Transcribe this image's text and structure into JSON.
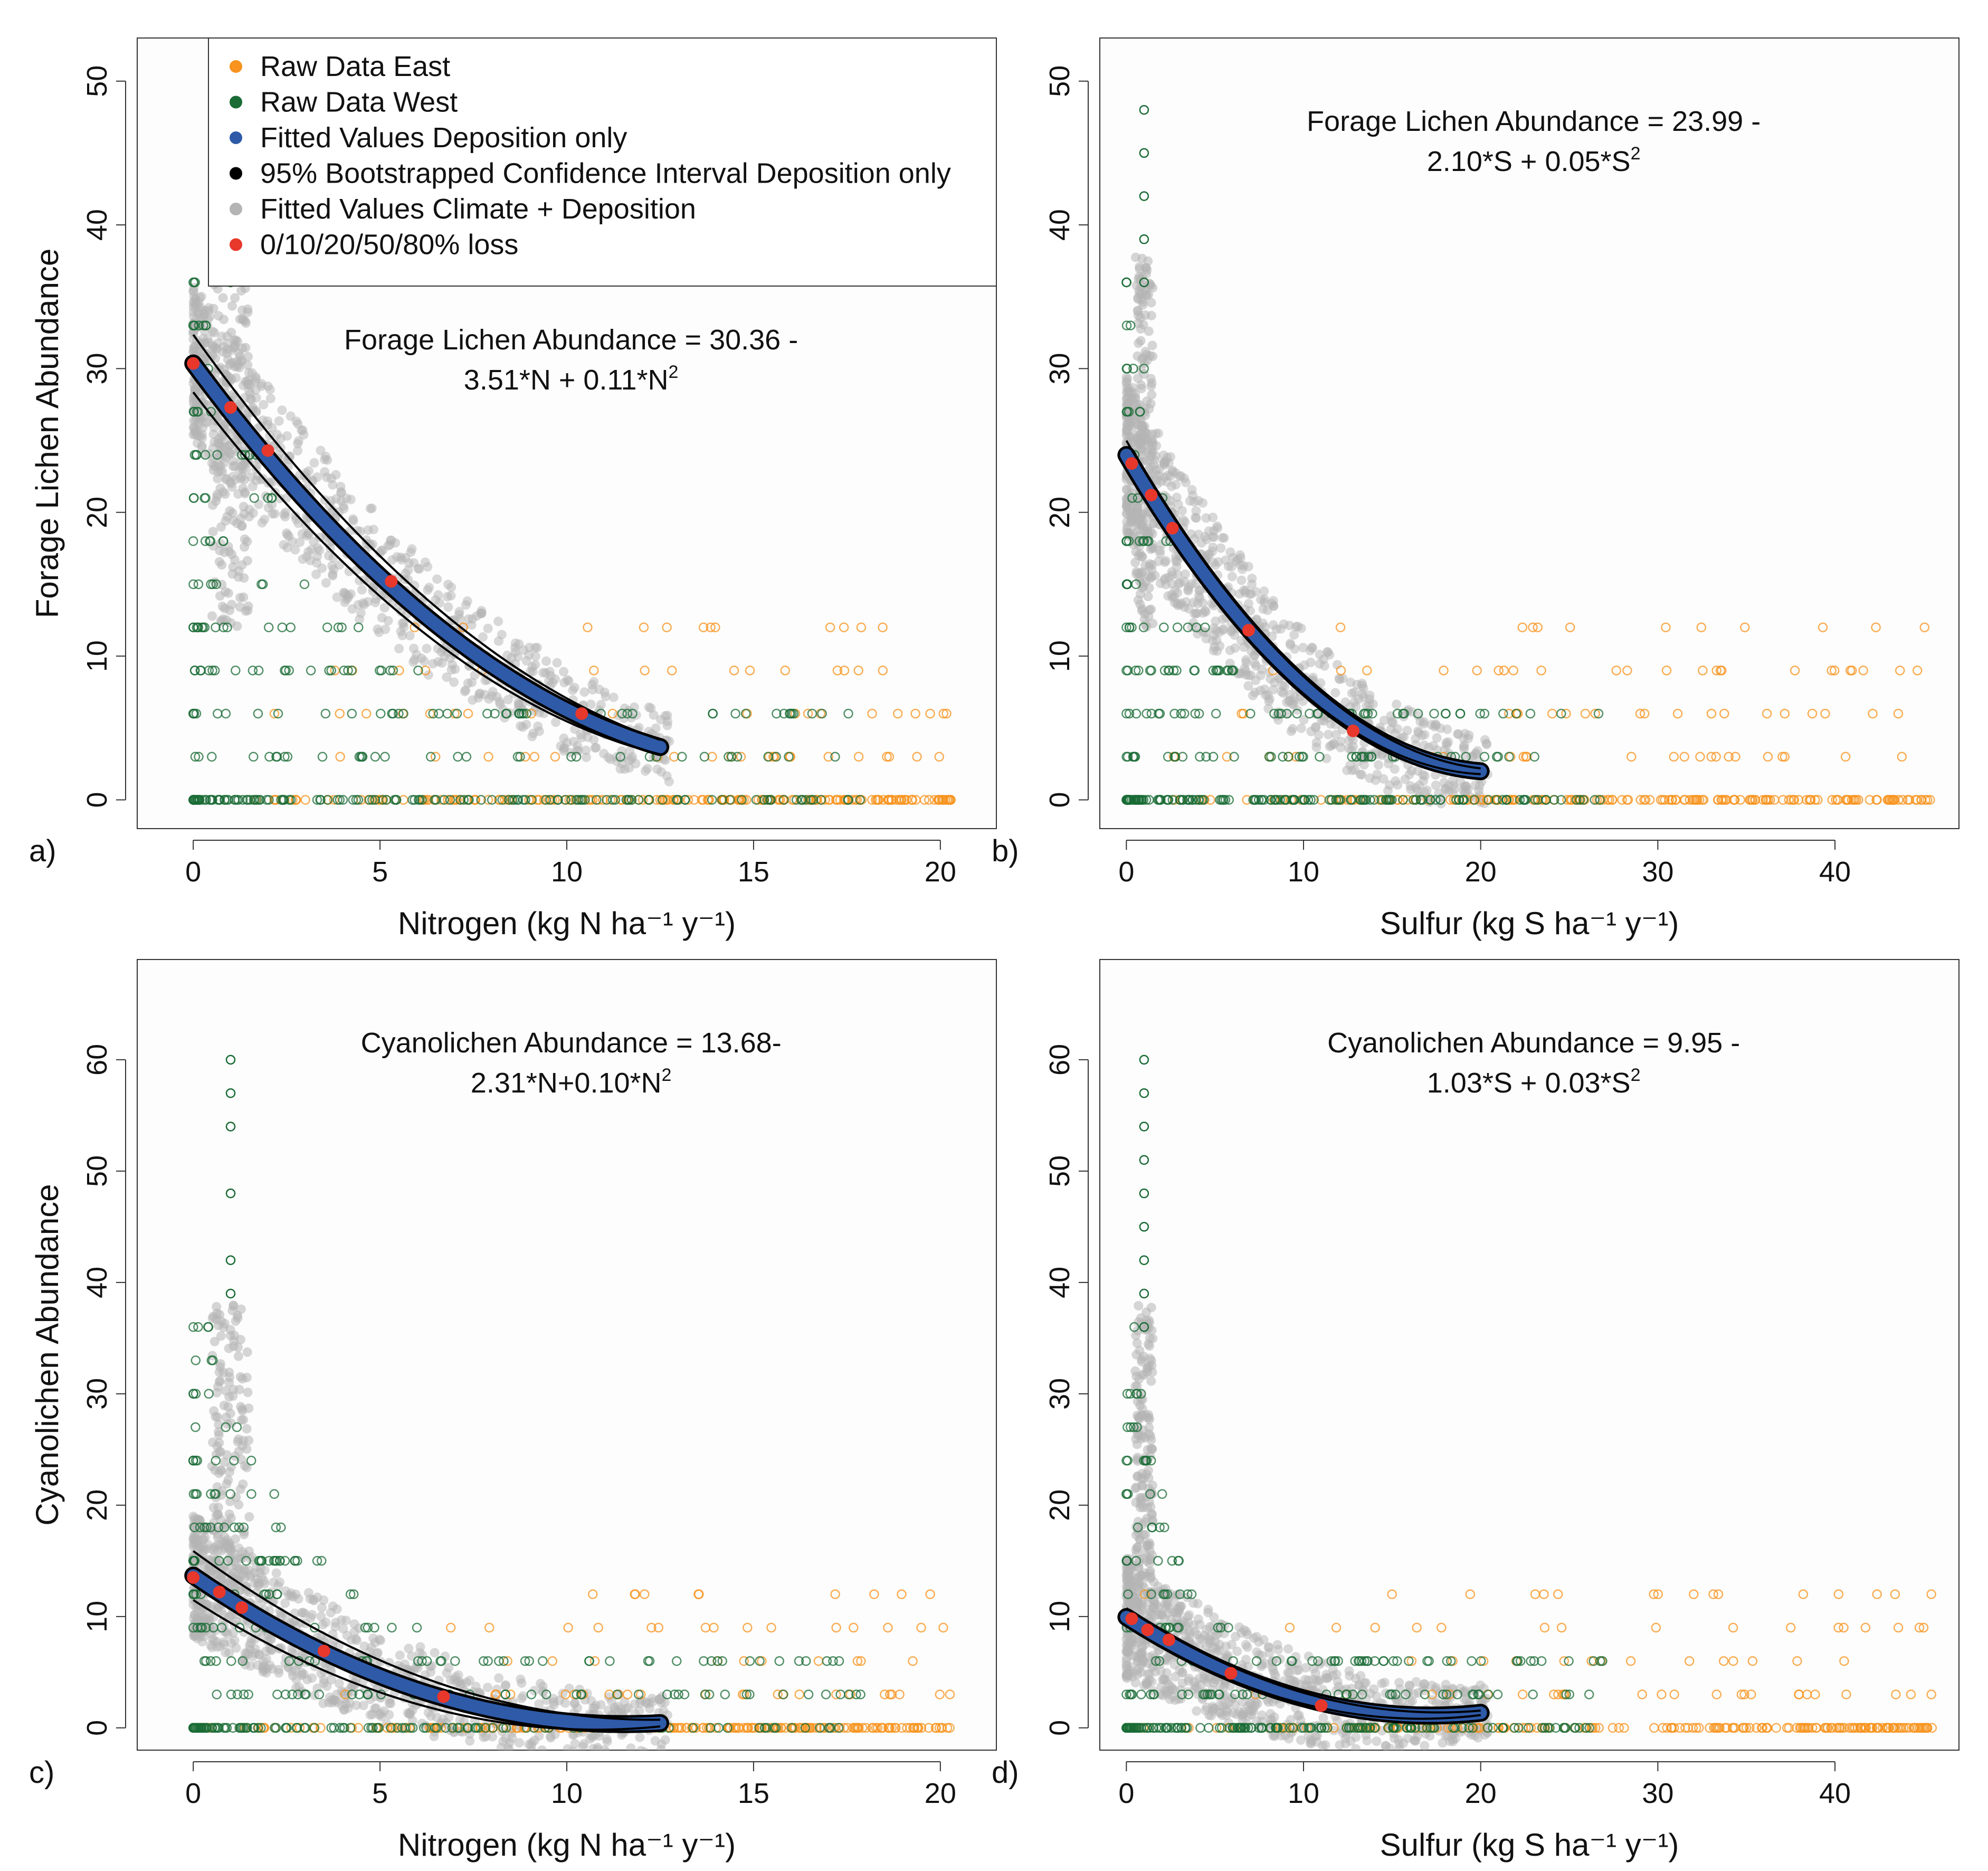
{
  "colors": {
    "east": "#f7931e",
    "west": "#1a6b35",
    "fitted": "#2e5aa8",
    "ci": "#000000",
    "climate": "#b4b4b4",
    "loss": "#e8372b",
    "panel_bg": "#fdfdfd"
  },
  "legend": {
    "items": [
      {
        "label": "Raw Data East",
        "color_key": "east"
      },
      {
        "label": "Raw Data West",
        "color_key": "west"
      },
      {
        "label": "Fitted Values Deposition only",
        "color_key": "fitted"
      },
      {
        "label": "95% Bootstrapped Confidence Interval Deposition only",
        "color_key": "ci"
      },
      {
        "label": "Fitted Values Climate + Deposition",
        "color_key": "climate"
      },
      {
        "label": "0/10/20/50/80% loss",
        "color_key": "loss"
      }
    ]
  },
  "chart_data": [
    {
      "type": "scatter",
      "panel_label": "a)",
      "xlabel": "Nitrogen (kg N ha⁻¹ y⁻¹)",
      "ylabel": "Forage Lichen Abundance",
      "xlim": [
        -1.5,
        21.5
      ],
      "ylim": [
        -2,
        53
      ],
      "xticks": [
        0,
        5,
        10,
        15,
        20
      ],
      "yticks": [
        0,
        10,
        20,
        30,
        40,
        50
      ],
      "equation_line1": "Forage Lichen Abundance = 30.36 -",
      "equation_line2": "3.51*N + 0.11*N",
      "equation_sup": "2",
      "coef": [
        30.36,
        -3.51,
        0.11
      ],
      "fit_range": [
        0,
        12.5
      ],
      "ci_half_width": [
        2.0,
        0.5
      ],
      "loss_points": [
        [
          0,
          30.36
        ],
        [
          1.0,
          27.3
        ],
        [
          2.0,
          24.3
        ],
        [
          5.3,
          15.2
        ],
        [
          10.4,
          6.0
        ]
      ],
      "x_east_max": 20.3,
      "x_west_max": 18.1,
      "legend": true
    },
    {
      "type": "scatter",
      "panel_label": "b)",
      "xlabel": "Sulfur (kg S ha⁻¹ y⁻¹)",
      "ylabel": "",
      "xlim": [
        -1.5,
        47
      ],
      "ylim": [
        -2,
        53
      ],
      "xticks": [
        0,
        10,
        20,
        30,
        40
      ],
      "yticks": [
        0,
        10,
        20,
        30,
        40,
        50
      ],
      "equation_line1": "Forage Lichen Abundance = 23.99 -",
      "equation_line2": "2.10*S + 0.05*S",
      "equation_sup": "2",
      "coef": [
        23.99,
        -2.1,
        0.05
      ],
      "fit_range": [
        0,
        20
      ],
      "ci_half_width": [
        1.0,
        0.2
      ],
      "loss_points": [
        [
          0.3,
          23.4
        ],
        [
          1.4,
          21.2
        ],
        [
          2.6,
          18.9
        ],
        [
          6.9,
          11.8
        ],
        [
          12.8,
          4.8
        ]
      ],
      "x_east_max": 45.5,
      "x_west_max": 27,
      "legend": false
    },
    {
      "type": "scatter",
      "panel_label": "c)",
      "xlabel": "Nitrogen (kg N ha⁻¹ y⁻¹)",
      "ylabel": "Cyanolichen Abundance",
      "xlim": [
        -1.5,
        21.5
      ],
      "ylim": [
        -2,
        69
      ],
      "xticks": [
        0,
        5,
        10,
        15,
        20
      ],
      "yticks": [
        0,
        10,
        20,
        30,
        40,
        50,
        60
      ],
      "equation_line1": "Cyanolichen Abundance = 13.68-",
      "equation_line2": "2.31*N+0.10*N",
      "equation_sup": "2",
      "coef": [
        13.68,
        -2.31,
        0.1
      ],
      "fit_range": [
        0,
        12.5
      ],
      "ci_half_width": [
        2.2,
        0.3
      ],
      "loss_points": [
        [
          0,
          13.5
        ],
        [
          0.7,
          12.2
        ],
        [
          1.3,
          10.8
        ],
        [
          3.5,
          6.9
        ],
        [
          6.7,
          2.8
        ]
      ],
      "x_east_max": 20.3,
      "x_west_max": 18.1,
      "legend": false
    },
    {
      "type": "scatter",
      "panel_label": "d)",
      "xlabel": "Sulfur (kg S ha⁻¹ y⁻¹)",
      "ylabel": "",
      "xlim": [
        -1.5,
        47
      ],
      "ylim": [
        -2,
        69
      ],
      "xticks": [
        0,
        10,
        20,
        30,
        40
      ],
      "yticks": [
        0,
        10,
        20,
        30,
        40,
        50,
        60
      ],
      "equation_line1": "Cyanolichen Abundance = 9.95 -",
      "equation_line2": "1.03*S + 0.03*S",
      "equation_sup": "2",
      "coef": [
        9.95,
        -1.03,
        0.03
      ],
      "fit_range": [
        0,
        20
      ],
      "ci_half_width": [
        0.8,
        0.2
      ],
      "loss_points": [
        [
          0.3,
          9.8
        ],
        [
          1.2,
          8.8
        ],
        [
          2.4,
          7.9
        ],
        [
          5.9,
          4.9
        ],
        [
          11.0,
          2.0
        ]
      ],
      "x_east_max": 45.5,
      "x_west_max": 27,
      "legend": false
    }
  ]
}
